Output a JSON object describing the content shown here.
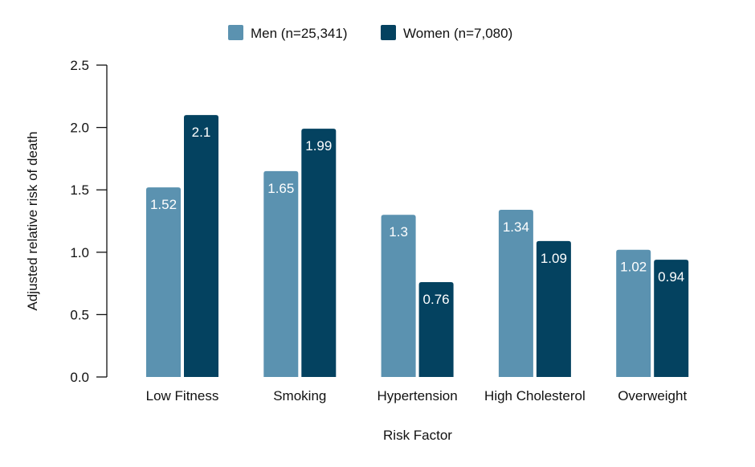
{
  "chart_data": {
    "type": "bar",
    "categories": [
      "Low Fitness",
      "Smoking",
      "Hypertension",
      "High Cholesterol",
      "Overweight"
    ],
    "series": [
      {
        "name": "Men (n=25,341)",
        "values": [
          1.52,
          1.65,
          1.3,
          1.34,
          1.02
        ],
        "labels": [
          "1.52",
          "1.65",
          "1.3",
          "1.34",
          "1.02"
        ],
        "color": "#5b92b0"
      },
      {
        "name": "Women (n=7,080)",
        "values": [
          2.1,
          1.99,
          0.76,
          1.09,
          0.94
        ],
        "labels": [
          "2.1",
          "1.99",
          "0.76",
          "1.09",
          "0.94"
        ],
        "color": "#044260"
      }
    ],
    "xlabel": "Risk Factor",
    "ylabel": "Adjusted relative risk of death",
    "ylim": [
      0,
      2.5
    ],
    "yticks": [
      "0.0",
      "0.5",
      "1.0",
      "1.5",
      "2.0",
      "2.5"
    ],
    "ytick_values": [
      0,
      0.5,
      1.0,
      1.5,
      2.0,
      2.5
    ],
    "grid": false,
    "legend_position": "top-center"
  }
}
